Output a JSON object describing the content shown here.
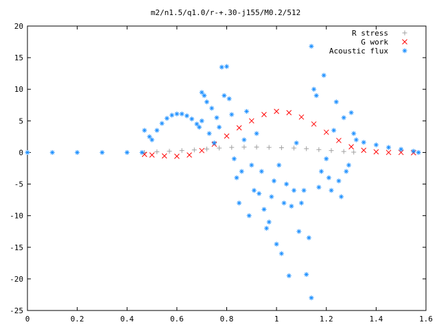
{
  "chart_data": {
    "type": "scatter",
    "title": "m2/n1.5/q1.0/r-+.30-j155/M0.2/512",
    "xlabel": "",
    "ylabel": "",
    "xlim": [
      0,
      1.6
    ],
    "ylim": [
      -25,
      20
    ],
    "x_ticks": [
      "0",
      "0.2",
      "0.4",
      "0.6",
      "0.8",
      "1",
      "1.2",
      "1.4",
      "1.6"
    ],
    "y_ticks": [
      "20",
      "15",
      "10",
      "5",
      "0",
      "-5",
      "-10",
      "-15",
      "-20",
      "-25"
    ],
    "grid": false,
    "legend_position": "top-right",
    "series": [
      {
        "name": "R stress",
        "marker": "+",
        "color": "#a0a0a0",
        "points": [
          [
            0.47,
            0.0
          ],
          [
            0.52,
            0.1
          ],
          [
            0.57,
            0.2
          ],
          [
            0.62,
            0.3
          ],
          [
            0.67,
            0.4
          ],
          [
            0.72,
            0.55
          ],
          [
            0.77,
            0.7
          ],
          [
            0.82,
            0.8
          ],
          [
            0.87,
            0.85
          ],
          [
            0.92,
            0.85
          ],
          [
            0.97,
            0.8
          ],
          [
            1.02,
            0.75
          ],
          [
            1.07,
            0.7
          ],
          [
            1.12,
            0.6
          ],
          [
            1.17,
            0.45
          ],
          [
            1.22,
            0.3
          ],
          [
            1.27,
            0.15
          ],
          [
            1.31,
            0.05
          ]
        ]
      },
      {
        "name": "G work",
        "marker": "x",
        "color": "#ff0000",
        "points": [
          [
            0.47,
            -0.3
          ],
          [
            0.5,
            -0.4
          ],
          [
            0.55,
            -0.55
          ],
          [
            0.6,
            -0.6
          ],
          [
            0.65,
            -0.4
          ],
          [
            0.7,
            0.3
          ],
          [
            0.75,
            1.3
          ],
          [
            0.8,
            2.6
          ],
          [
            0.85,
            3.9
          ],
          [
            0.9,
            5.0
          ],
          [
            0.95,
            6.0
          ],
          [
            1.0,
            6.5
          ],
          [
            1.05,
            6.3
          ],
          [
            1.1,
            5.6
          ],
          [
            1.15,
            4.5
          ],
          [
            1.2,
            3.2
          ],
          [
            1.25,
            1.9
          ],
          [
            1.3,
            0.9
          ],
          [
            1.35,
            0.35
          ],
          [
            1.4,
            0.1
          ],
          [
            1.45,
            0.0
          ],
          [
            1.5,
            0.0
          ],
          [
            1.55,
            -0.05
          ]
        ]
      },
      {
        "name": "Acoustic flux",
        "marker": "*",
        "color": "#1e90ff",
        "points": [
          [
            0.0,
            0.0
          ],
          [
            0.1,
            0.0
          ],
          [
            0.2,
            0.0
          ],
          [
            0.3,
            0.0
          ],
          [
            0.4,
            0.0
          ],
          [
            0.46,
            0.0
          ],
          [
            0.47,
            3.5
          ],
          [
            0.49,
            2.5
          ],
          [
            0.5,
            2.0
          ],
          [
            0.52,
            3.5
          ],
          [
            0.54,
            4.6
          ],
          [
            0.56,
            5.4
          ],
          [
            0.58,
            5.9
          ],
          [
            0.6,
            6.1
          ],
          [
            0.62,
            6.1
          ],
          [
            0.64,
            5.8
          ],
          [
            0.66,
            5.3
          ],
          [
            0.68,
            4.5
          ],
          [
            0.69,
            4.0
          ],
          [
            0.7,
            9.5
          ],
          [
            0.71,
            9.0
          ],
          [
            0.72,
            8.0
          ],
          [
            0.7,
            5.0
          ],
          [
            0.73,
            3.0
          ],
          [
            0.75,
            1.5
          ],
          [
            0.74,
            7.0
          ],
          [
            0.76,
            5.5
          ],
          [
            0.77,
            4.0
          ],
          [
            0.78,
            13.5
          ],
          [
            0.8,
            13.6
          ],
          [
            0.79,
            9.0
          ],
          [
            0.81,
            8.5
          ],
          [
            0.82,
            6.0
          ],
          [
            0.83,
            -1.0
          ],
          [
            0.84,
            -4.0
          ],
          [
            0.85,
            -8.0
          ],
          [
            0.86,
            -3.0
          ],
          [
            0.87,
            2.0
          ],
          [
            0.88,
            6.5
          ],
          [
            0.89,
            -10.0
          ],
          [
            0.9,
            -2.0
          ],
          [
            0.91,
            -6.0
          ],
          [
            0.92,
            3.0
          ],
          [
            0.93,
            -6.5
          ],
          [
            0.94,
            -3.0
          ],
          [
            0.95,
            -9.0
          ],
          [
            0.96,
            -12.0
          ],
          [
            0.97,
            -11.0
          ],
          [
            0.98,
            -7.0
          ],
          [
            0.99,
            -4.5
          ],
          [
            1.0,
            -14.5
          ],
          [
            1.01,
            -2.0
          ],
          [
            1.02,
            -16.0
          ],
          [
            1.03,
            -8.0
          ],
          [
            1.04,
            -5.0
          ],
          [
            1.05,
            -19.5
          ],
          [
            1.06,
            -8.5
          ],
          [
            1.07,
            -6.0
          ],
          [
            1.08,
            1.5
          ],
          [
            1.09,
            -12.5
          ],
          [
            1.1,
            -8.0
          ],
          [
            1.11,
            -6.0
          ],
          [
            1.12,
            -19.3
          ],
          [
            1.13,
            -13.5
          ],
          [
            1.14,
            16.8
          ],
          [
            1.15,
            10.0
          ],
          [
            1.16,
            9.0
          ],
          [
            1.17,
            -5.5
          ],
          [
            1.18,
            -3.0
          ],
          [
            1.19,
            12.2
          ],
          [
            1.2,
            -1.0
          ],
          [
            1.21,
            -4.0
          ],
          [
            1.22,
            -6.0
          ],
          [
            1.23,
            3.5
          ],
          [
            1.24,
            8.0
          ],
          [
            1.25,
            -4.5
          ],
          [
            1.26,
            -7.0
          ],
          [
            1.27,
            5.5
          ],
          [
            1.28,
            -3.0
          ],
          [
            1.29,
            -2.0
          ],
          [
            1.3,
            6.3
          ],
          [
            1.31,
            3.0
          ],
          [
            1.14,
            -23.0
          ],
          [
            1.32,
            2.0
          ],
          [
            1.35,
            1.6
          ],
          [
            1.4,
            1.2
          ],
          [
            1.45,
            0.8
          ],
          [
            1.5,
            0.5
          ],
          [
            1.55,
            0.2
          ],
          [
            1.57,
            0.0
          ]
        ]
      }
    ]
  }
}
